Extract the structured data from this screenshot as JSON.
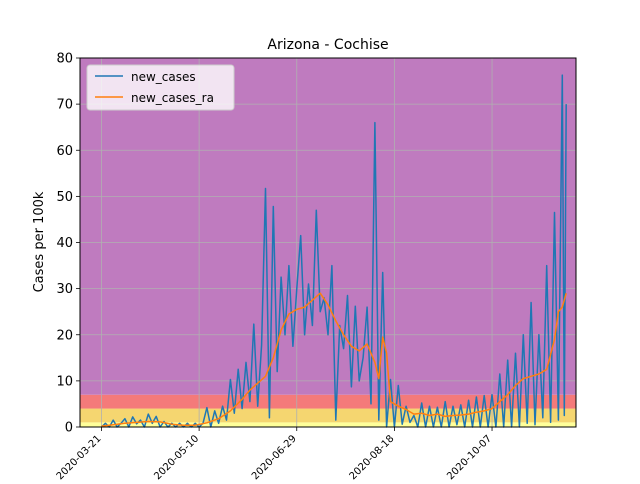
{
  "chart_data": {
    "type": "line",
    "title": "Arizona - Cochise",
    "xlabel": "",
    "ylabel": "Cases per 100k",
    "x_tick_labels": [
      "2020-03-21",
      "2020-05-10",
      "2020-06-29",
      "2020-08-18",
      "2020-10-07"
    ],
    "x_start_date": "2020-03-10",
    "x_end_date": "2020-11-19",
    "ylim": [
      0,
      80
    ],
    "yticks": [
      0,
      10,
      20,
      30,
      40,
      50,
      60,
      70,
      80
    ],
    "grid": true,
    "legend_position": "top-left",
    "background_bands": [
      {
        "from": 0,
        "to": 1,
        "color": "#ffff99"
      },
      {
        "from": 1,
        "to": 4,
        "color": "#f5d670"
      },
      {
        "from": 4,
        "to": 7,
        "color": "#f47a7a"
      },
      {
        "from": 7,
        "to": 80,
        "color": "#bf7bbf"
      }
    ],
    "series": [
      {
        "name": "new_cases",
        "color": "#1f77b4",
        "points": [
          [
            "2020-03-21",
            0
          ],
          [
            "2020-03-23",
            0.8
          ],
          [
            "2020-03-25",
            0
          ],
          [
            "2020-03-27",
            1.5
          ],
          [
            "2020-03-29",
            0
          ],
          [
            "2020-03-31",
            0.8
          ],
          [
            "2020-04-02",
            1.8
          ],
          [
            "2020-04-04",
            0
          ],
          [
            "2020-04-06",
            2.2
          ],
          [
            "2020-04-08",
            0.7
          ],
          [
            "2020-04-10",
            1.5
          ],
          [
            "2020-04-12",
            0
          ],
          [
            "2020-04-14",
            2.8
          ],
          [
            "2020-04-16",
            0.8
          ],
          [
            "2020-04-18",
            2.3
          ],
          [
            "2020-04-20",
            0
          ],
          [
            "2020-04-22",
            1.2
          ],
          [
            "2020-04-24",
            0
          ],
          [
            "2020-04-26",
            0.8
          ],
          [
            "2020-04-28",
            0
          ],
          [
            "2020-04-30",
            0.8
          ],
          [
            "2020-05-02",
            0
          ],
          [
            "2020-05-04",
            0.8
          ],
          [
            "2020-05-06",
            0
          ],
          [
            "2020-05-08",
            0.8
          ],
          [
            "2020-05-10",
            0
          ],
          [
            "2020-05-12",
            0.8
          ],
          [
            "2020-05-14",
            4.2
          ],
          [
            "2020-05-16",
            0
          ],
          [
            "2020-05-18",
            3.5
          ],
          [
            "2020-05-20",
            0.8
          ],
          [
            "2020-05-22",
            4.5
          ],
          [
            "2020-05-24",
            1.5
          ],
          [
            "2020-05-26",
            10.3
          ],
          [
            "2020-05-28",
            3
          ],
          [
            "2020-05-30",
            12.5
          ],
          [
            "2020-06-01",
            4
          ],
          [
            "2020-06-03",
            14
          ],
          [
            "2020-06-05",
            5.5
          ],
          [
            "2020-06-07",
            22.3
          ],
          [
            "2020-06-09",
            4.5
          ],
          [
            "2020-06-11",
            17.8
          ],
          [
            "2020-06-13",
            51.7
          ],
          [
            "2020-06-15",
            2
          ],
          [
            "2020-06-17",
            47.8
          ],
          [
            "2020-06-19",
            12
          ],
          [
            "2020-06-21",
            32.5
          ],
          [
            "2020-06-23",
            20
          ],
          [
            "2020-06-25",
            35
          ],
          [
            "2020-06-27",
            17.5
          ],
          [
            "2020-06-29",
            30
          ],
          [
            "2020-07-01",
            41.5
          ],
          [
            "2020-07-03",
            20
          ],
          [
            "2020-07-05",
            31
          ],
          [
            "2020-07-07",
            22
          ],
          [
            "2020-07-09",
            47
          ],
          [
            "2020-07-11",
            25
          ],
          [
            "2020-07-13",
            28
          ],
          [
            "2020-07-15",
            20
          ],
          [
            "2020-07-17",
            35
          ],
          [
            "2020-07-19",
            1.5
          ],
          [
            "2020-07-21",
            22
          ],
          [
            "2020-07-23",
            17
          ],
          [
            "2020-07-25",
            28.5
          ],
          [
            "2020-07-27",
            8.7
          ],
          [
            "2020-07-29",
            26.2
          ],
          [
            "2020-07-31",
            10
          ],
          [
            "2020-08-02",
            15
          ],
          [
            "2020-08-04",
            26
          ],
          [
            "2020-08-06",
            5
          ],
          [
            "2020-08-08",
            66
          ],
          [
            "2020-08-10",
            1.5
          ],
          [
            "2020-08-12",
            33.5
          ],
          [
            "2020-08-14",
            0
          ],
          [
            "2020-08-16",
            10.3
          ],
          [
            "2020-08-18",
            0
          ],
          [
            "2020-08-20",
            9
          ],
          [
            "2020-08-22",
            0.6
          ],
          [
            "2020-08-24",
            4.5
          ],
          [
            "2020-08-26",
            1
          ],
          [
            "2020-08-28",
            2.5
          ],
          [
            "2020-08-30",
            0
          ],
          [
            "2020-09-01",
            5.2
          ],
          [
            "2020-09-03",
            0
          ],
          [
            "2020-09-05",
            4.5
          ],
          [
            "2020-09-07",
            0
          ],
          [
            "2020-09-09",
            4.3
          ],
          [
            "2020-09-11",
            0
          ],
          [
            "2020-09-13",
            5.5
          ],
          [
            "2020-09-15",
            0
          ],
          [
            "2020-09-17",
            4.5
          ],
          [
            "2020-09-19",
            0.5
          ],
          [
            "2020-09-21",
            4.8
          ],
          [
            "2020-09-23",
            0
          ],
          [
            "2020-09-25",
            5.8
          ],
          [
            "2020-09-27",
            0
          ],
          [
            "2020-09-29",
            6.5
          ],
          [
            "2020-10-01",
            0
          ],
          [
            "2020-10-03",
            6.8
          ],
          [
            "2020-10-05",
            0
          ],
          [
            "2020-10-07",
            7
          ],
          [
            "2020-10-09",
            0
          ],
          [
            "2020-10-11",
            11.5
          ],
          [
            "2020-10-13",
            0
          ],
          [
            "2020-10-15",
            14.5
          ],
          [
            "2020-10-17",
            0
          ],
          [
            "2020-10-19",
            16
          ],
          [
            "2020-10-21",
            0
          ],
          [
            "2020-10-23",
            20
          ],
          [
            "2020-10-25",
            0.8
          ],
          [
            "2020-10-27",
            27
          ],
          [
            "2020-10-29",
            0.5
          ],
          [
            "2020-10-31",
            20
          ],
          [
            "2020-11-02",
            2
          ],
          [
            "2020-11-04",
            35
          ],
          [
            "2020-11-06",
            1
          ],
          [
            "2020-11-08",
            46.5
          ],
          [
            "2020-11-10",
            1.5
          ],
          [
            "2020-11-12",
            76.3
          ],
          [
            "2020-11-13",
            2.5
          ],
          [
            "2020-11-14",
            70
          ]
        ]
      },
      {
        "name": "new_cases_ra",
        "color": "#ff7f0e",
        "points": [
          [
            "2020-03-21",
            0.2
          ],
          [
            "2020-03-27",
            0.5
          ],
          [
            "2020-04-02",
            0.8
          ],
          [
            "2020-04-08",
            1
          ],
          [
            "2020-04-14",
            1.2
          ],
          [
            "2020-04-20",
            1.1
          ],
          [
            "2020-04-26",
            0.6
          ],
          [
            "2020-05-02",
            0.4
          ],
          [
            "2020-05-08",
            0.4
          ],
          [
            "2020-05-14",
            0.9
          ],
          [
            "2020-05-20",
            1.8
          ],
          [
            "2020-05-26",
            3.5
          ],
          [
            "2020-06-01",
            6
          ],
          [
            "2020-06-05",
            8
          ],
          [
            "2020-06-09",
            9.5
          ],
          [
            "2020-06-13",
            11
          ],
          [
            "2020-06-17",
            15
          ],
          [
            "2020-06-21",
            21
          ],
          [
            "2020-06-25",
            24.5
          ],
          [
            "2020-06-29",
            25.5
          ],
          [
            "2020-07-03",
            26
          ],
          [
            "2020-07-07",
            27.5
          ],
          [
            "2020-07-11",
            29
          ],
          [
            "2020-07-15",
            26.5
          ],
          [
            "2020-07-19",
            23
          ],
          [
            "2020-07-23",
            20
          ],
          [
            "2020-07-27",
            17.5
          ],
          [
            "2020-07-31",
            16.5
          ],
          [
            "2020-08-04",
            18
          ],
          [
            "2020-08-08",
            14
          ],
          [
            "2020-08-10",
            10.5
          ],
          [
            "2020-08-12",
            19.5
          ],
          [
            "2020-08-14",
            16
          ],
          [
            "2020-08-16",
            5.5
          ],
          [
            "2020-08-20",
            4.5
          ],
          [
            "2020-08-24",
            3.8
          ],
          [
            "2020-08-28",
            2.8
          ],
          [
            "2020-09-01",
            3
          ],
          [
            "2020-09-05",
            2.5
          ],
          [
            "2020-09-09",
            2.8
          ],
          [
            "2020-09-13",
            2.3
          ],
          [
            "2020-09-17",
            2.5
          ],
          [
            "2020-09-21",
            2.6
          ],
          [
            "2020-09-25",
            2.8
          ],
          [
            "2020-09-29",
            3.2
          ],
          [
            "2020-10-03",
            3.5
          ],
          [
            "2020-10-07",
            4
          ],
          [
            "2020-10-11",
            5.5
          ],
          [
            "2020-10-15",
            7
          ],
          [
            "2020-10-19",
            9
          ],
          [
            "2020-10-23",
            10.5
          ],
          [
            "2020-10-27",
            11
          ],
          [
            "2020-10-31",
            11.5
          ],
          [
            "2020-11-04",
            12.5
          ],
          [
            "2020-11-08",
            19
          ],
          [
            "2020-11-10",
            25
          ],
          [
            "2020-11-12",
            26
          ],
          [
            "2020-11-14",
            29
          ]
        ]
      }
    ]
  }
}
